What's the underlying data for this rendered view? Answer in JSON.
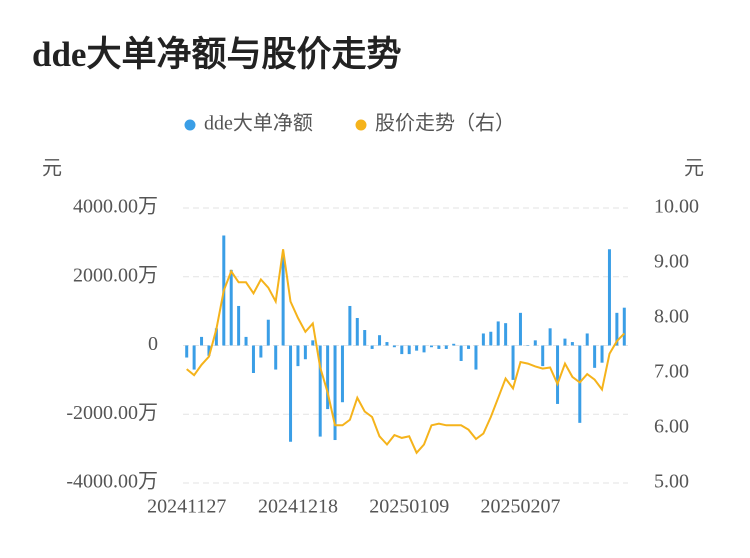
{
  "chart_data": {
    "type": "bar_line",
    "title": "dde大单净额与股价走势",
    "y_axis_label": "元",
    "y2_axis_label": "元",
    "categories": [
      "20241127",
      null,
      null,
      null,
      null,
      null,
      null,
      null,
      null,
      null,
      null,
      null,
      null,
      null,
      null,
      "20241218",
      null,
      null,
      null,
      null,
      null,
      null,
      null,
      null,
      null,
      null,
      null,
      null,
      null,
      null,
      "20250109",
      null,
      null,
      null,
      null,
      null,
      null,
      null,
      null,
      null,
      null,
      null,
      null,
      null,
      null,
      "20250207",
      null,
      null,
      null,
      null,
      null,
      null,
      null,
      null,
      null,
      null,
      null,
      null,
      null,
      null
    ],
    "series": [
      {
        "name": "dde大单净额",
        "color": "#3a9ee6",
        "kind": "bar",
        "axis": "y",
        "values": [
          -350,
          -700,
          250,
          -300,
          500,
          3200,
          2200,
          1150,
          250,
          -800,
          -350,
          750,
          -700,
          2600,
          -2800,
          -600,
          -400,
          150,
          -2650,
          -1850,
          -2750,
          -1650,
          1150,
          800,
          450,
          -100,
          300,
          100,
          -50,
          -250,
          -250,
          -150,
          -200,
          -50,
          -100,
          -100,
          50,
          -450,
          -100,
          -700,
          350,
          400,
          700,
          650,
          -1000,
          950,
          0,
          150,
          -600,
          500,
          -1700,
          200,
          100,
          -2250,
          350,
          -650,
          -500,
          2800,
          950,
          1100
        ]
      },
      {
        "name": "股价走势（右）",
        "color": "#f5b31b",
        "kind": "line",
        "axis": "y2",
        "values": [
          7.07,
          6.96,
          7.15,
          7.3,
          7.8,
          8.5,
          8.85,
          8.65,
          8.65,
          8.45,
          8.7,
          8.55,
          8.3,
          9.25,
          8.3,
          8.0,
          7.75,
          7.9,
          7.1,
          6.65,
          6.05,
          6.05,
          6.15,
          6.55,
          6.3,
          6.2,
          5.85,
          5.7,
          5.87,
          5.82,
          5.85,
          5.55,
          5.7,
          6.05,
          6.08,
          6.05,
          6.05,
          6.05,
          5.97,
          5.8,
          5.9,
          6.2,
          6.55,
          6.9,
          6.72,
          7.2,
          7.17,
          7.12,
          7.08,
          7.1,
          6.8,
          7.17,
          6.93,
          6.83,
          6.98,
          6.88,
          6.7,
          7.35,
          7.58,
          7.72
        ]
      }
    ],
    "ylim": [
      -4000,
      4000
    ],
    "yticks": [
      {
        "value": -4000,
        "label": "-4000.00万"
      },
      {
        "value": -2000,
        "label": "-2000.00万"
      },
      0,
      {
        "value": 2000,
        "label": "2000.00万"
      },
      {
        "value": 4000,
        "label": "4000.00万"
      }
    ],
    "y2lim": [
      5,
      10
    ],
    "y2ticks": [
      {
        "value": 5,
        "label": "5.00"
      },
      {
        "value": 6,
        "label": "6.00"
      },
      {
        "value": 7,
        "label": "7.00"
      },
      {
        "value": 8,
        "label": "8.00"
      },
      {
        "value": 9,
        "label": "9.00"
      },
      {
        "value": 10,
        "label": "10.00"
      }
    ],
    "grid": true
  }
}
